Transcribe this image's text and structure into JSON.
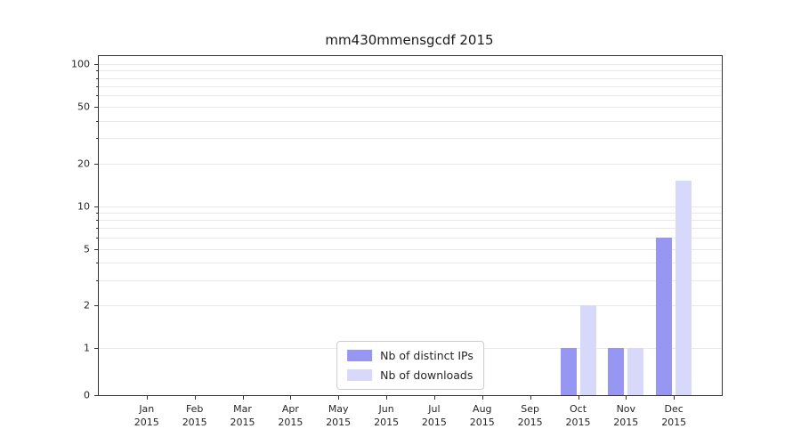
{
  "chart_data": {
    "type": "bar",
    "title": "mm430mmensgcdf 2015",
    "categories": [
      "Jan",
      "Feb",
      "Mar",
      "Apr",
      "May",
      "Jun",
      "Jul",
      "Aug",
      "Sep",
      "Oct",
      "Nov",
      "Dec"
    ],
    "year_label": "2015",
    "series": [
      {
        "name": "Nb of distinct IPs",
        "color": "#9797f3",
        "values": [
          0,
          0,
          0,
          0,
          0,
          0,
          0,
          0,
          0,
          1,
          1,
          6
        ]
      },
      {
        "name": "Nb of downloads",
        "color": "#d8d8fa",
        "values": [
          0,
          0,
          0,
          0,
          0,
          0,
          0,
          0,
          0,
          2,
          1,
          15
        ]
      }
    ],
    "yscale": "symlog",
    "ylim": [
      0,
      100
    ],
    "yticks": [
      0,
      1,
      2,
      5,
      10,
      20,
      50,
      100
    ],
    "grid_values": [
      1,
      2,
      3,
      4,
      5,
      6,
      7,
      8,
      9,
      10,
      20,
      30,
      40,
      50,
      60,
      70,
      80,
      90,
      100
    ],
    "grid": "horizontal",
    "legend_position": "lower center"
  }
}
